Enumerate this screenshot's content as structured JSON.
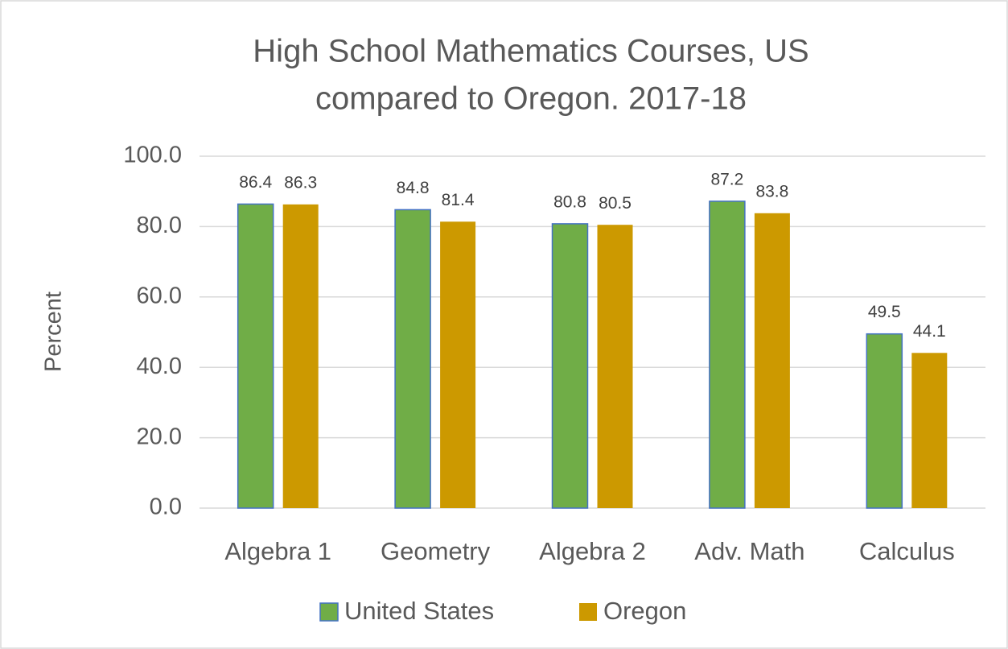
{
  "chart_data": {
    "type": "bar",
    "title": [
      "High School Mathematics Courses, US",
      "compared to Oregon. 2017-18"
    ],
    "y_label": "Percent",
    "categories": [
      "Algebra 1",
      "Geometry",
      "Algebra 2",
      "Adv. Math",
      "Calculus"
    ],
    "series": [
      {
        "name": "United States",
        "color": "#70ad47",
        "values": [
          86.4,
          84.8,
          80.8,
          87.2,
          49.5
        ]
      },
      {
        "name": "Oregon",
        "color": "#cc9900",
        "values": [
          86.3,
          81.4,
          80.5,
          83.8,
          44.1
        ]
      }
    ],
    "ylim": [
      0,
      100
    ],
    "yticks": [
      {
        "value": 0,
        "label": "0.0"
      },
      {
        "value": 20,
        "label": "20.0"
      },
      {
        "value": 40,
        "label": "40.0"
      },
      {
        "value": 60,
        "label": "60.0"
      },
      {
        "value": 80,
        "label": "80.0"
      },
      {
        "value": 100,
        "label": "100.0"
      }
    ],
    "grid": true,
    "legend": "bottom"
  }
}
